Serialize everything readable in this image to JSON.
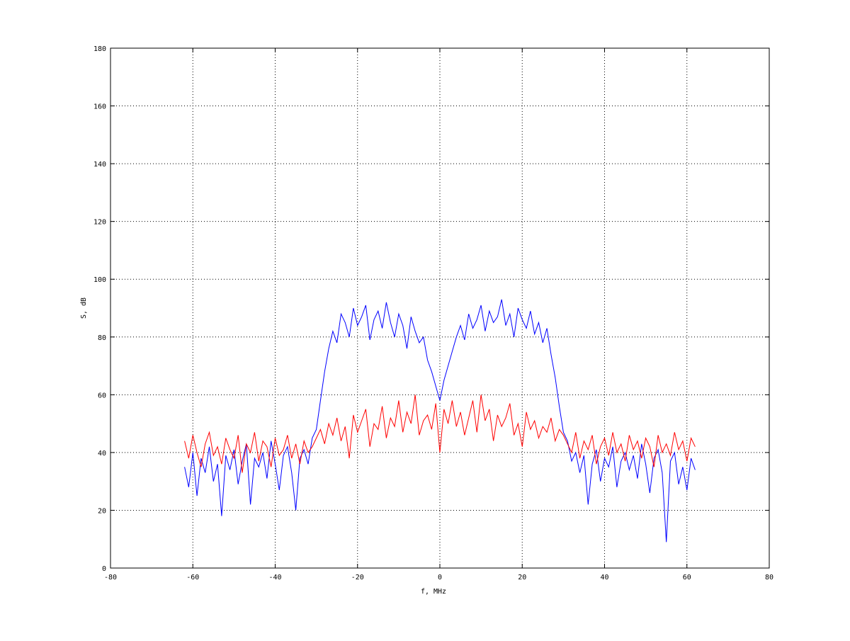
{
  "chart_data": {
    "type": "line",
    "title": "",
    "xlabel": "f, MHz",
    "ylabel": "S, dB",
    "xlim": [
      -80,
      80
    ],
    "ylim": [
      0,
      180
    ],
    "xticks": [
      -80,
      -60,
      -40,
      -20,
      0,
      20,
      40,
      60,
      80
    ],
    "yticks": [
      0,
      20,
      40,
      60,
      80,
      100,
      120,
      140,
      160,
      180
    ],
    "grid": true,
    "x_start": -62,
    "x_step": 1,
    "series": [
      {
        "color": "#0000ff",
        "values": [
          35,
          28,
          40,
          25,
          38,
          33,
          42,
          30,
          36,
          18,
          39,
          34,
          41,
          29,
          37,
          43,
          22,
          38,
          35,
          40,
          31,
          44,
          36,
          27,
          39,
          42,
          33,
          20,
          38,
          41,
          36,
          45,
          48,
          58,
          68,
          76,
          82,
          78,
          88,
          85,
          80,
          90,
          84,
          87,
          91,
          79,
          86,
          89,
          83,
          92,
          85,
          80,
          88,
          84,
          76,
          87,
          82,
          78,
          80,
          72,
          68,
          63,
          58,
          65,
          70,
          75,
          80,
          84,
          79,
          88,
          83,
          86,
          91,
          82,
          89,
          85,
          87,
          93,
          84,
          88,
          80,
          90,
          86,
          83,
          89,
          81,
          85,
          78,
          83,
          74,
          66,
          56,
          47,
          44,
          37,
          40,
          33,
          39,
          22,
          36,
          41,
          30,
          38,
          35,
          42,
          28,
          37,
          40,
          34,
          39,
          31,
          43,
          36,
          26,
          38,
          41,
          33,
          9,
          37,
          40,
          29,
          35,
          27,
          38,
          34
        ]
      },
      {
        "color": "#ff0000",
        "values": [
          44,
          38,
          46,
          40,
          35,
          43,
          47,
          39,
          42,
          36,
          45,
          41,
          38,
          46,
          33,
          43,
          40,
          47,
          37,
          44,
          42,
          35,
          45,
          39,
          41,
          46,
          38,
          43,
          36,
          44,
          40,
          42,
          45,
          48,
          43,
          50,
          46,
          52,
          44,
          49,
          38,
          53,
          47,
          51,
          55,
          42,
          50,
          48,
          56,
          45,
          52,
          49,
          58,
          47,
          54,
          50,
          60,
          46,
          51,
          53,
          48,
          57,
          40,
          55,
          50,
          58,
          49,
          54,
          46,
          52,
          58,
          47,
          60,
          51,
          55,
          44,
          53,
          49,
          52,
          57,
          46,
          50,
          42,
          54,
          48,
          51,
          45,
          49,
          47,
          52,
          44,
          48,
          46,
          43,
          40,
          47,
          38,
          44,
          41,
          46,
          36,
          42,
          45,
          39,
          47,
          40,
          43,
          37,
          46,
          41,
          44,
          38,
          45,
          42,
          35,
          46,
          40,
          43,
          39,
          47,
          41,
          44,
          37,
          45,
          42
        ]
      }
    ]
  }
}
